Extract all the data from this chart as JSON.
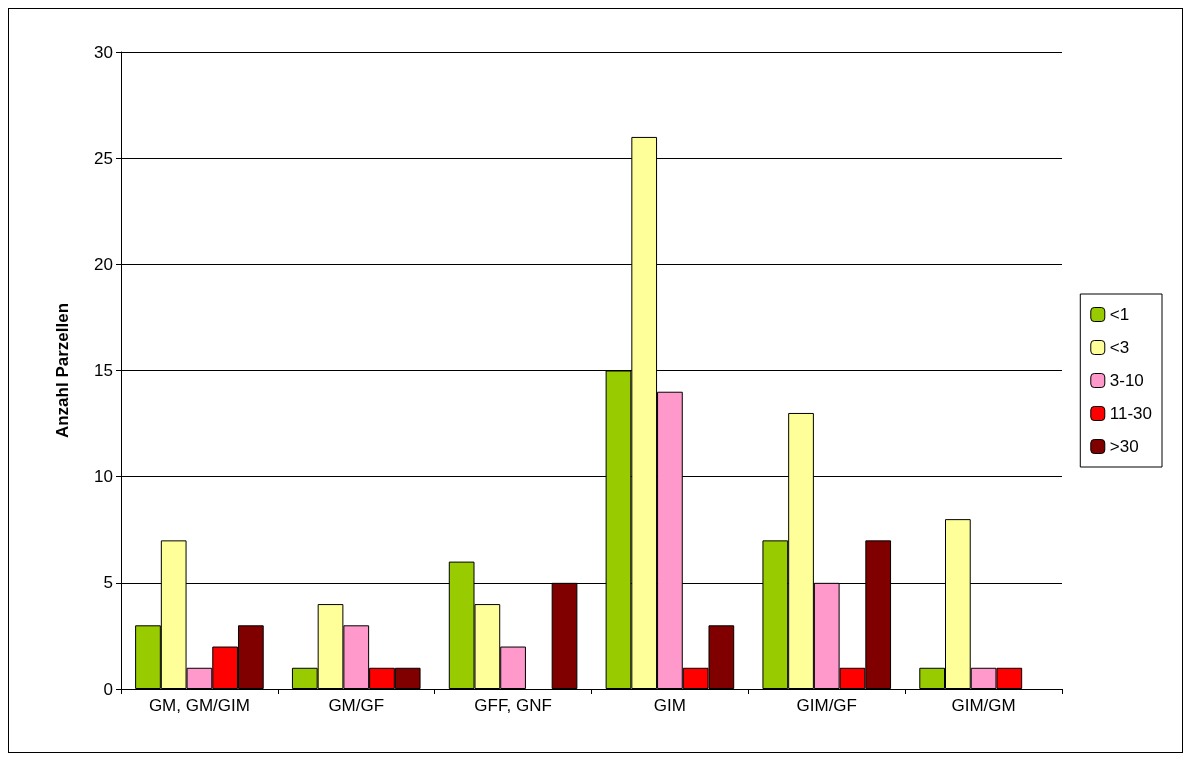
{
  "chart_data": {
    "type": "bar",
    "ylabel": "Anzahl Parzellen",
    "categories": [
      "GM, GM/GIM",
      "GM/GF",
      "GFF, GNF",
      "GIM",
      "GIM/GF",
      "GIM/GM"
    ],
    "series": [
      {
        "name": "<1",
        "color": "#99cc00",
        "values": [
          3,
          1,
          6,
          15,
          7,
          1
        ]
      },
      {
        "name": "<3",
        "color": "#ffff99",
        "values": [
          7,
          4,
          4,
          26,
          13,
          8
        ]
      },
      {
        "name": "3-10",
        "color": "#ff99cc",
        "values": [
          1,
          3,
          2,
          14,
          5,
          1
        ]
      },
      {
        "name": "11-30",
        "color": "#ff0000",
        "values": [
          2,
          1,
          null,
          1,
          1,
          1
        ]
      },
      {
        "name": ">30",
        "color": "#800000",
        "values": [
          3,
          1,
          5,
          3,
          7,
          null
        ]
      }
    ],
    "ylim": [
      0,
      30
    ],
    "yticks": [
      0,
      5,
      10,
      15,
      20,
      25,
      30
    ],
    "grid": "y",
    "legend": "right"
  }
}
